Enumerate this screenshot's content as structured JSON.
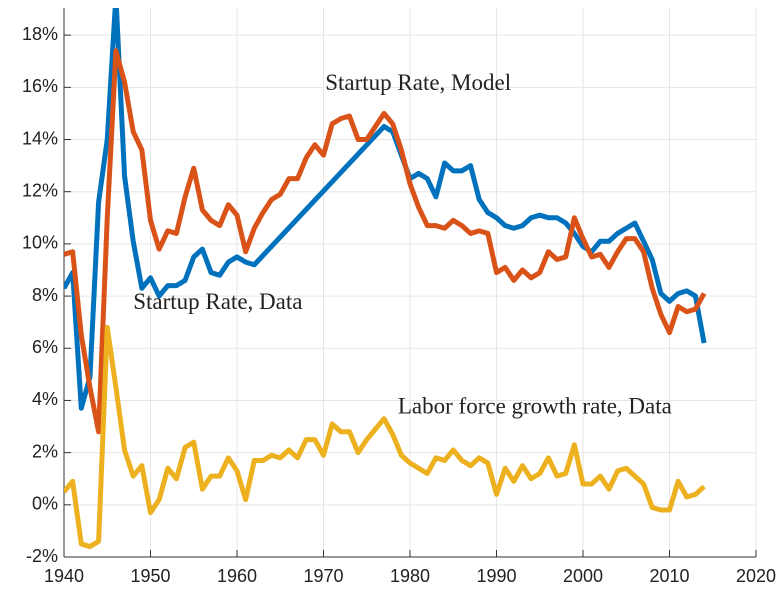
{
  "chart_data": {
    "type": "line",
    "x": [
      1940,
      1941,
      1942,
      1943,
      1944,
      1945,
      1946,
      1947,
      1948,
      1949,
      1950,
      1951,
      1952,
      1953,
      1954,
      1955,
      1956,
      1957,
      1958,
      1959,
      1960,
      1961,
      1962,
      1963,
      1964,
      1965,
      1966,
      1967,
      1968,
      1969,
      1970,
      1971,
      1972,
      1973,
      1974,
      1975,
      1976,
      1977,
      1978,
      1979,
      1980,
      1981,
      1982,
      1983,
      1984,
      1985,
      1986,
      1987,
      1988,
      1989,
      1990,
      1991,
      1992,
      1993,
      1994,
      1995,
      1996,
      1997,
      1998,
      1999,
      2000,
      2001,
      2002,
      2003,
      2004,
      2005,
      2006,
      2007,
      2008,
      2009,
      2010,
      2011,
      2012,
      2013,
      2014
    ],
    "series": [
      {
        "name": "Startup Rate, Data",
        "color": "#0072bd",
        "x": [
          1940,
          1941,
          1942,
          1943,
          1944,
          1945,
          1946,
          1947,
          1948,
          1949,
          1950,
          1951,
          1952,
          1953,
          1954,
          1955,
          1956,
          1957,
          1958,
          1959,
          1960,
          1961,
          1962,
          1977,
          1978,
          1979,
          1980,
          1981,
          1982,
          1983,
          1984,
          1985,
          1986,
          1987,
          1988,
          1989,
          1990,
          1991,
          1992,
          1993,
          1994,
          1995,
          1996,
          1997,
          1998,
          1999,
          2000,
          2001,
          2002,
          2003,
          2004,
          2005,
          2006,
          2007,
          2008,
          2009,
          2010,
          2011,
          2012,
          2013,
          2014
        ],
        "values": [
          8.3,
          8.9,
          3.7,
          4.9,
          11.6,
          14.0,
          19.5,
          12.6,
          10.1,
          8.3,
          8.7,
          8.0,
          8.4,
          8.4,
          8.6,
          9.5,
          9.8,
          8.9,
          8.8,
          9.3,
          9.5,
          9.3,
          9.2,
          14.5,
          14.3,
          13.4,
          12.5,
          12.7,
          12.5,
          11.8,
          13.1,
          12.8,
          12.8,
          13.0,
          11.7,
          11.2,
          11.0,
          10.7,
          10.6,
          10.7,
          11.0,
          11.1,
          11.0,
          11.0,
          10.8,
          10.4,
          9.9,
          9.7,
          10.1,
          10.1,
          10.4,
          10.6,
          10.8,
          10.1,
          9.4,
          8.1,
          7.8,
          8.1,
          8.2,
          8.0,
          6.2
        ]
      },
      {
        "name": "Startup Rate, Model",
        "color": "#d95319",
        "values": [
          9.6,
          9.7,
          6.5,
          4.5,
          2.8,
          11.0,
          17.4,
          16.2,
          14.3,
          13.6,
          10.9,
          9.8,
          10.5,
          10.4,
          11.8,
          12.9,
          11.3,
          10.9,
          10.7,
          11.5,
          11.1,
          9.7,
          10.6,
          11.2,
          11.7,
          11.9,
          12.5,
          12.5,
          13.3,
          13.8,
          13.4,
          14.6,
          14.8,
          14.9,
          14.0,
          14.0,
          14.5,
          15.0,
          14.6,
          13.6,
          12.3,
          11.4,
          10.7,
          10.7,
          10.6,
          10.9,
          10.7,
          10.4,
          10.5,
          10.4,
          8.9,
          9.1,
          8.6,
          9.0,
          8.7,
          8.9,
          9.7,
          9.4,
          9.5,
          11.0,
          10.2,
          9.5,
          9.6,
          9.1,
          9.7,
          10.2,
          10.2,
          9.7,
          8.3,
          7.3,
          6.6,
          7.6,
          7.4,
          7.5,
          8.1
        ]
      },
      {
        "name": "Labor force growth rate, Data",
        "color": "#edb120",
        "values": [
          0.5,
          0.9,
          -1.5,
          -1.6,
          -1.4,
          6.8,
          4.5,
          2.1,
          1.1,
          1.5,
          -0.3,
          0.2,
          1.4,
          1.0,
          2.2,
          2.4,
          0.6,
          1.1,
          1.1,
          1.8,
          1.3,
          0.2,
          1.7,
          1.7,
          1.9,
          1.8,
          2.1,
          1.8,
          2.5,
          2.5,
          1.9,
          3.1,
          2.8,
          2.8,
          2.0,
          2.5,
          2.9,
          3.3,
          2.7,
          1.9,
          1.6,
          1.4,
          1.2,
          1.8,
          1.7,
          2.1,
          1.7,
          1.5,
          1.8,
          1.6,
          0.4,
          1.4,
          0.9,
          1.5,
          1.0,
          1.2,
          1.8,
          1.1,
          1.2,
          2.3,
          0.8,
          0.8,
          1.1,
          0.6,
          1.3,
          1.4,
          1.1,
          0.8,
          -0.1,
          -0.2,
          -0.2,
          0.9,
          0.3,
          0.4,
          0.7
        ]
      }
    ],
    "xlim": [
      1940,
      2020
    ],
    "xticks": [
      1940,
      1950,
      1960,
      1970,
      1980,
      1990,
      2000,
      2010,
      2020
    ],
    "ylim": [
      -2,
      19.04
    ],
    "yticks": [
      {
        "value": -2,
        "label": "-2%"
      },
      {
        "value": 0,
        "label": "0%"
      },
      {
        "value": 2,
        "label": "2%"
      },
      {
        "value": 4,
        "label": "4%"
      },
      {
        "value": 6,
        "label": "6%"
      },
      {
        "value": 8,
        "label": "8%"
      },
      {
        "value": 10,
        "label": "10%"
      },
      {
        "value": 12,
        "label": "12%"
      },
      {
        "value": 14,
        "label": "14%"
      },
      {
        "value": 16,
        "label": "16%"
      },
      {
        "value": 18,
        "label": "18%"
      }
    ],
    "grid": true
  }
}
